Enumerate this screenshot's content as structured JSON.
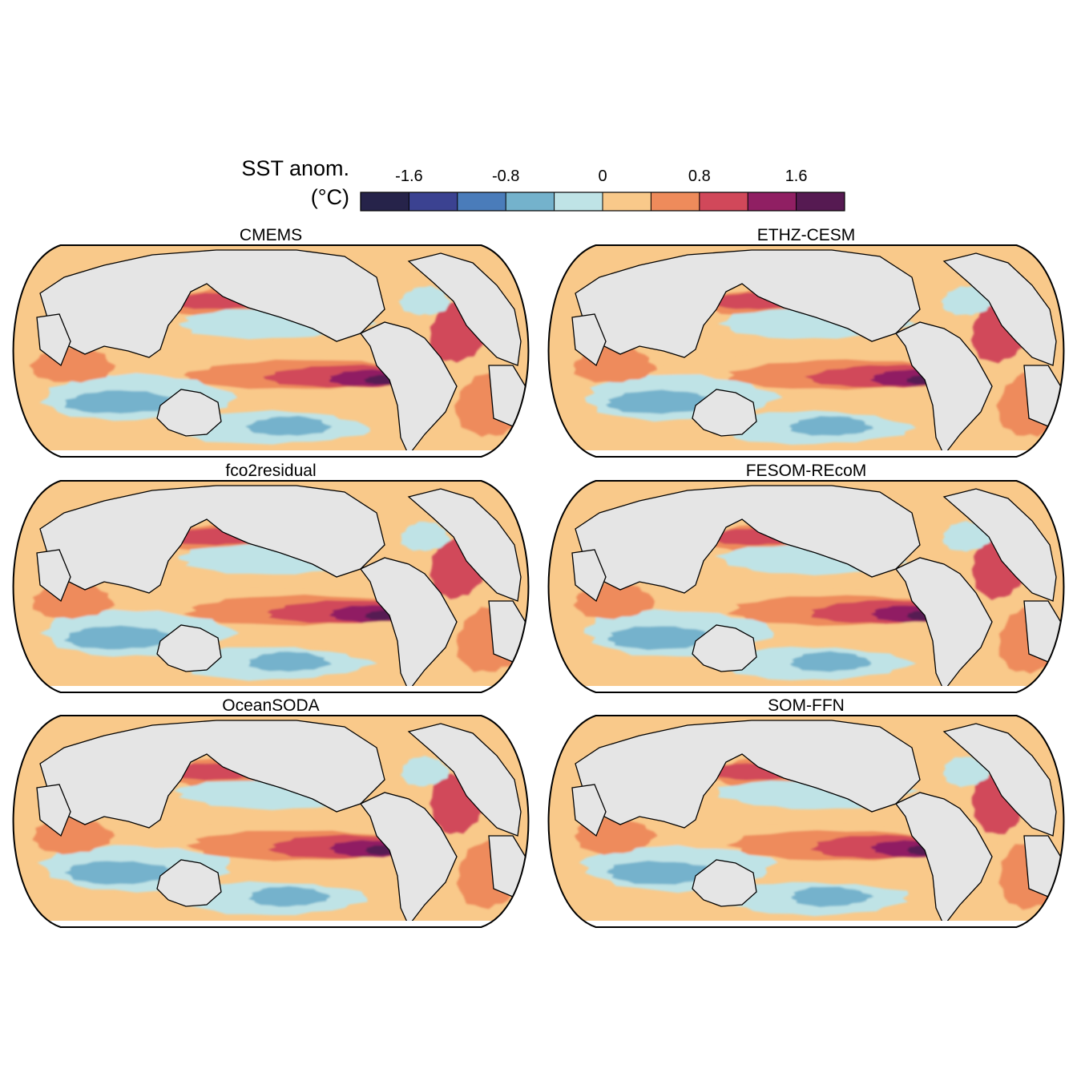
{
  "legend": {
    "title_line1": "SST anom.",
    "title_line2": "(°C)",
    "tick_labels": [
      "-1.6",
      "-0.8",
      "0",
      "0.8",
      "1.6"
    ],
    "tick_values": [
      -1.6,
      -0.8,
      0,
      0.8,
      1.6
    ],
    "range": [
      -2.0,
      2.0
    ],
    "bin_colors": [
      "#26234a",
      "#3b4291",
      "#4a7cba",
      "#74b2cc",
      "#bfe3e6",
      "#f9c98a",
      "#ee8b5b",
      "#d1485a",
      "#901f63",
      "#561a52"
    ]
  },
  "land_color": "#e5e5e5",
  "panels": [
    {
      "title": "CMEMS"
    },
    {
      "title": "ETHZ-CESM"
    },
    {
      "title": "fco2residual"
    },
    {
      "title": "FESOM-REcoM"
    },
    {
      "title": "OceanSODA"
    },
    {
      "title": "SOM-FFN"
    }
  ]
}
